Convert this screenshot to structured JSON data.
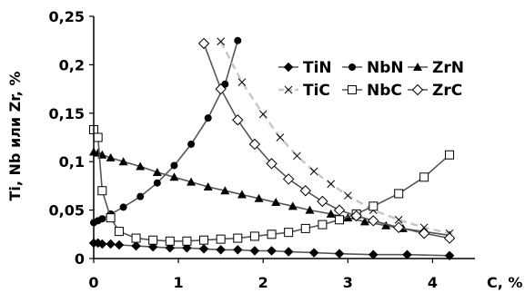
{
  "chart_data": {
    "type": "line",
    "title": "",
    "xlabel": "C, %",
    "ylabel": "Ti, Nb или Zr, %",
    "xlim": [
      0,
      4.5
    ],
    "ylim": [
      0,
      0.25
    ],
    "grid": false,
    "legend_position": "top-right",
    "x_ticks": [
      {
        "value": 0,
        "label": "0"
      },
      {
        "value": 1,
        "label": "1"
      },
      {
        "value": 2,
        "label": "2"
      },
      {
        "value": 3,
        "label": "3"
      },
      {
        "value": 4,
        "label": "4"
      }
    ],
    "y_ticks": [
      {
        "value": 0,
        "label": "0"
      },
      {
        "value": 0.05,
        "label": "0,05"
      },
      {
        "value": 0.1,
        "label": "0,1"
      },
      {
        "value": 0.15,
        "label": "0,15"
      },
      {
        "value": 0.2,
        "label": "0,2"
      },
      {
        "value": 0.25,
        "label": "0,25"
      }
    ],
    "series": [
      {
        "name": "TiN",
        "color": "#000000",
        "marker": "diamond-filled",
        "dashed": false,
        "x": [
          0,
          0.05,
          0.1,
          0.2,
          0.3,
          0.5,
          0.7,
          0.9,
          1.1,
          1.3,
          1.5,
          1.7,
          1.9,
          2.1,
          2.3,
          2.6,
          2.9,
          3.3,
          3.7,
          4.2
        ],
        "y": [
          0.016,
          0.016,
          0.015,
          0.015,
          0.014,
          0.013,
          0.012,
          0.011,
          0.011,
          0.01,
          0.009,
          0.009,
          0.008,
          0.008,
          0.007,
          0.006,
          0.005,
          0.004,
          0.004,
          0.003
        ]
      },
      {
        "name": "NbN",
        "color": "#000000",
        "marker": "circle-filled",
        "dashed": false,
        "x": [
          0,
          0.05,
          0.1,
          0.2,
          0.35,
          0.55,
          0.75,
          0.95,
          1.15,
          1.35,
          1.55,
          1.7
        ],
        "y": [
          0.037,
          0.039,
          0.041,
          0.046,
          0.053,
          0.064,
          0.078,
          0.096,
          0.118,
          0.145,
          0.18,
          0.225
        ]
      },
      {
        "name": "ZrN",
        "color": "#000000",
        "marker": "triangle-filled",
        "dashed": false,
        "x": [
          0,
          0.05,
          0.1,
          0.2,
          0.35,
          0.55,
          0.75,
          0.95,
          1.15,
          1.35,
          1.55,
          1.75,
          1.95,
          2.15,
          2.35,
          2.55,
          2.8,
          3.0,
          3.2,
          3.45,
          3.65,
          4.2
        ],
        "y": [
          0.11,
          0.109,
          0.107,
          0.104,
          0.1,
          0.095,
          0.089,
          0.084,
          0.079,
          0.074,
          0.07,
          0.066,
          0.062,
          0.058,
          0.054,
          0.05,
          0.046,
          0.042,
          0.038,
          0.034,
          0.031,
          0.024
        ]
      },
      {
        "name": "TiC",
        "color": "#000000",
        "marker": "x",
        "dashed": true,
        "x": [
          1.5,
          1.75,
          2.0,
          2.2,
          2.4,
          2.6,
          2.8,
          3.0,
          3.3,
          3.6,
          3.9,
          4.2
        ],
        "y": [
          0.224,
          0.182,
          0.149,
          0.125,
          0.106,
          0.09,
          0.077,
          0.065,
          0.05,
          0.04,
          0.032,
          0.026
        ]
      },
      {
        "name": "NbC",
        "color": "#000000",
        "marker": "square-open",
        "dashed": false,
        "x": [
          0,
          0.05,
          0.1,
          0.2,
          0.3,
          0.5,
          0.7,
          0.9,
          1.1,
          1.3,
          1.5,
          1.7,
          1.9,
          2.1,
          2.3,
          2.5,
          2.7,
          2.9,
          3.1,
          3.3,
          3.6,
          3.9,
          4.2
        ],
        "y": [
          0.133,
          0.125,
          0.07,
          0.042,
          0.028,
          0.021,
          0.019,
          0.018,
          0.018,
          0.019,
          0.02,
          0.021,
          0.023,
          0.025,
          0.027,
          0.031,
          0.035,
          0.04,
          0.046,
          0.054,
          0.067,
          0.084,
          0.107
        ]
      },
      {
        "name": "ZrC",
        "color": "#000000",
        "marker": "diamond-open",
        "dashed": false,
        "x": [
          1.3,
          1.5,
          1.7,
          1.9,
          2.1,
          2.3,
          2.5,
          2.7,
          2.9,
          3.1,
          3.3,
          3.6,
          3.9,
          4.2
        ],
        "y": [
          0.222,
          0.175,
          0.143,
          0.118,
          0.098,
          0.082,
          0.07,
          0.059,
          0.05,
          0.044,
          0.039,
          0.032,
          0.026,
          0.021
        ]
      }
    ]
  }
}
